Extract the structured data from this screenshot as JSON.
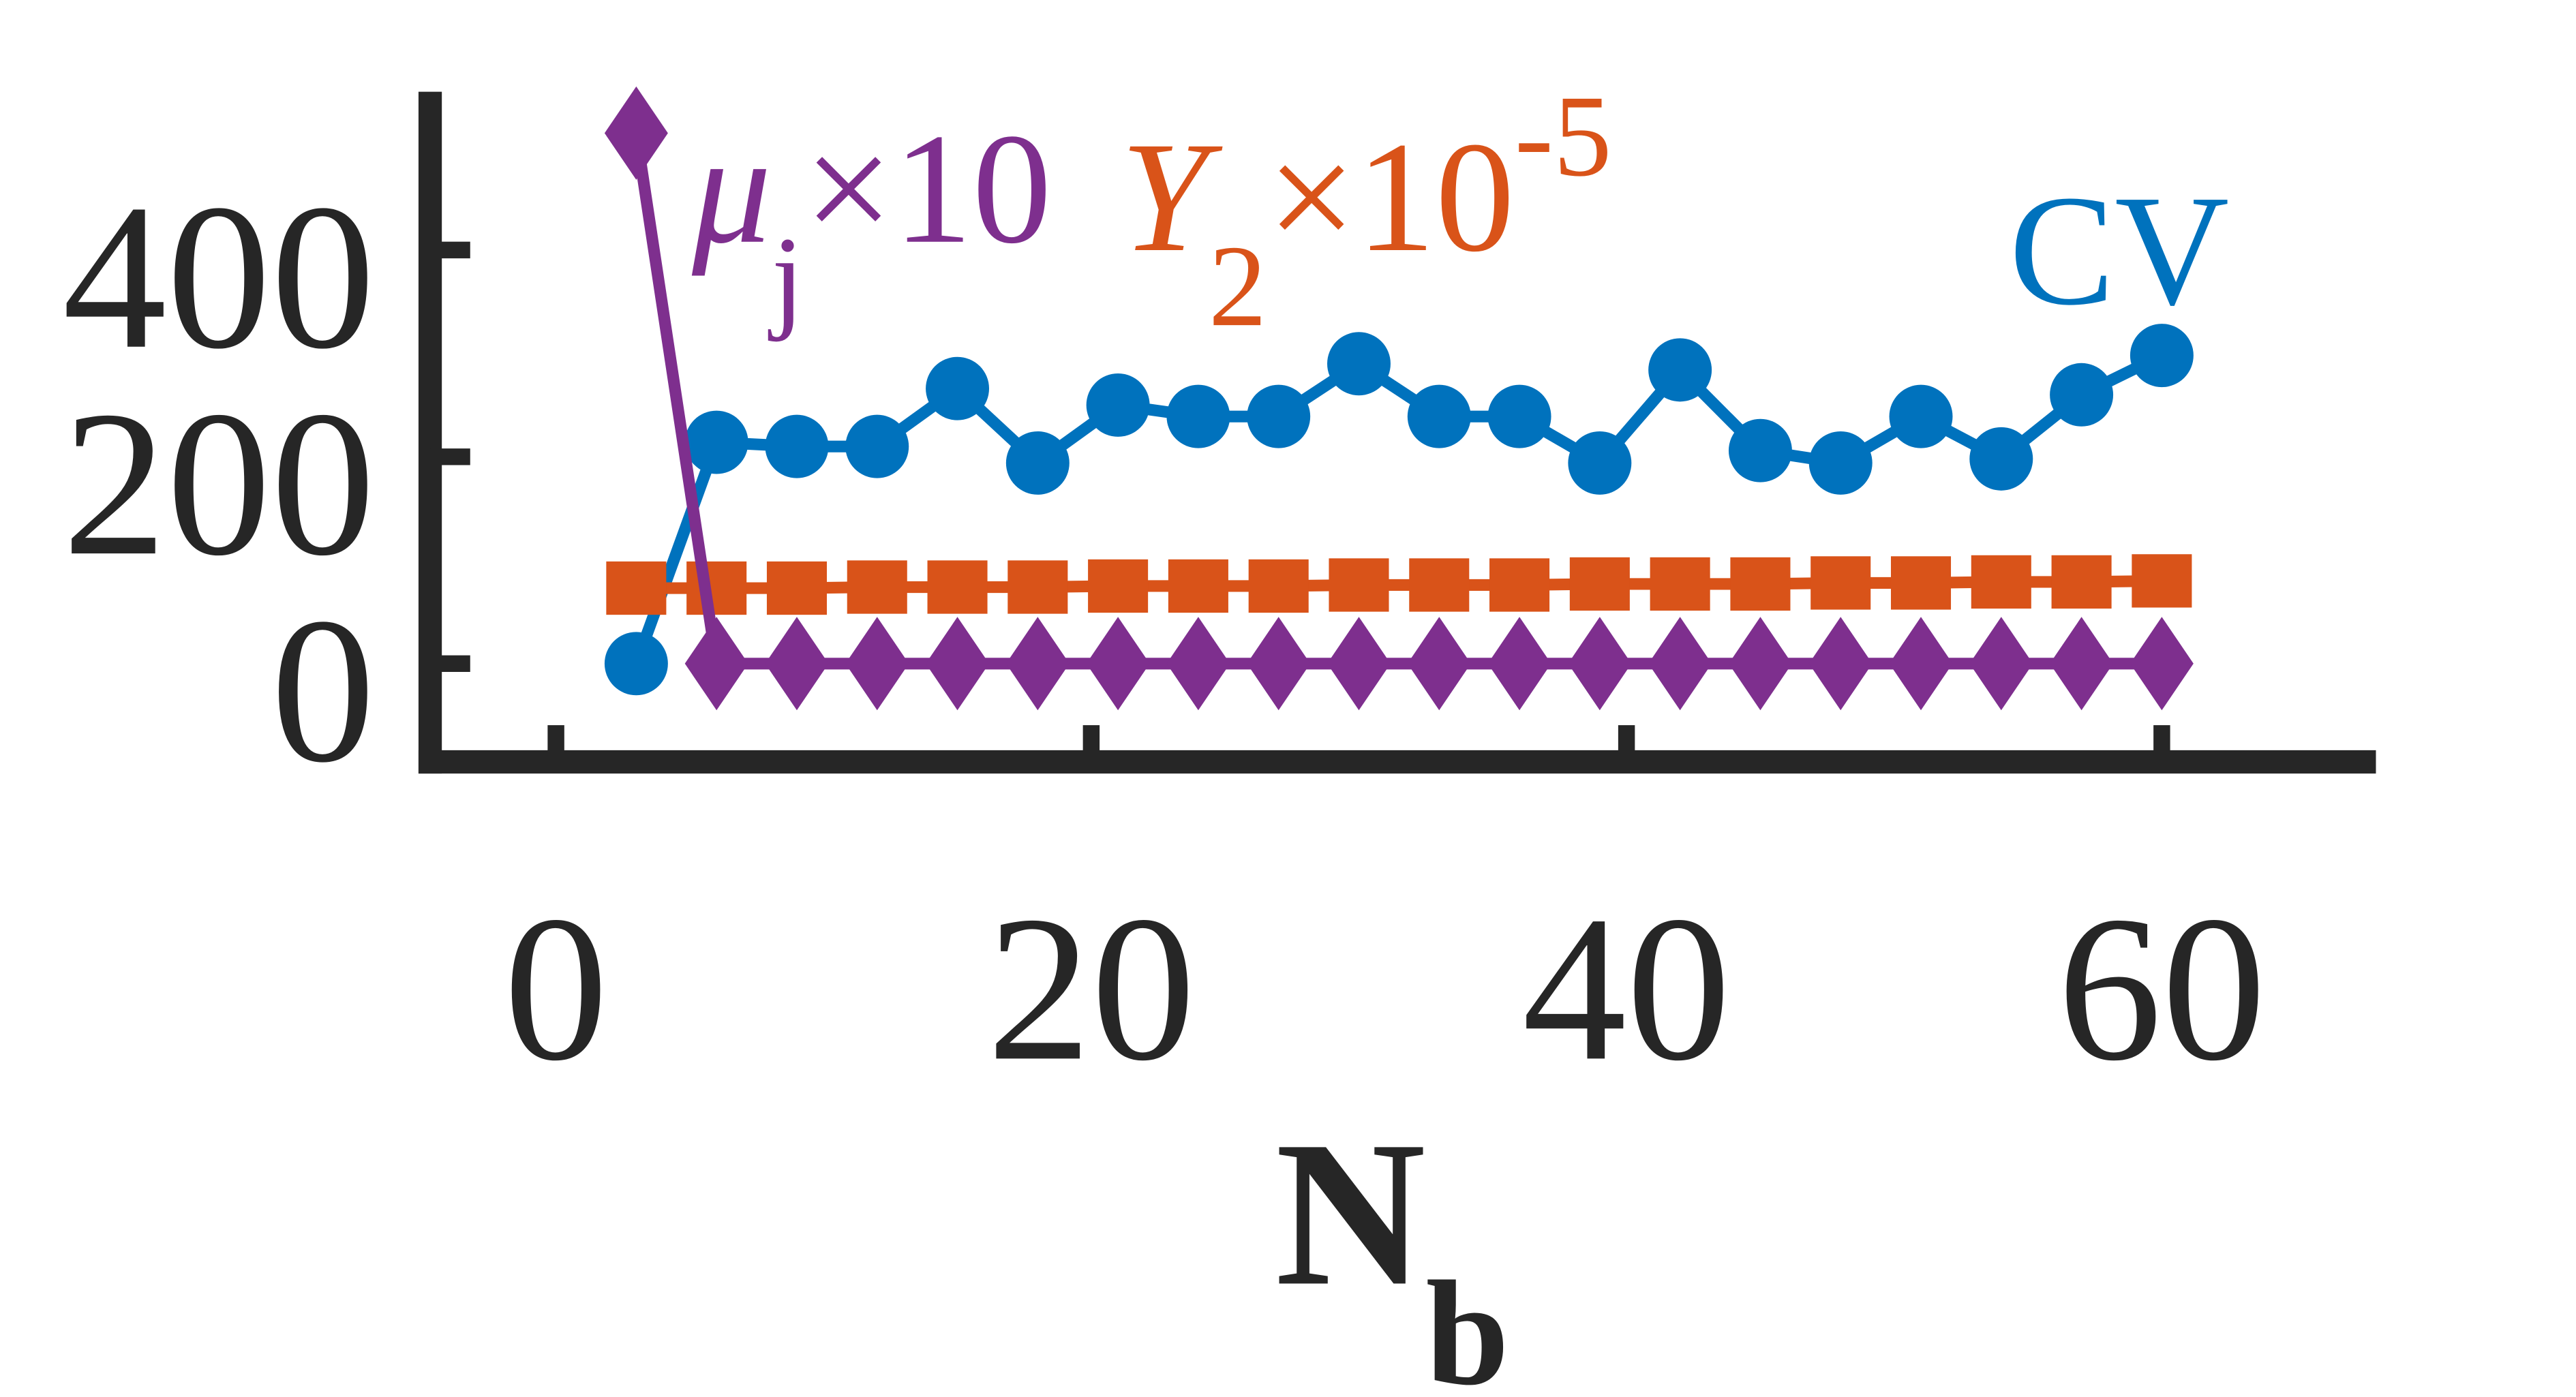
{
  "chart_data": {
    "type": "line",
    "x_label": {
      "text": "N",
      "sub": "b"
    },
    "x": [
      3,
      6,
      9,
      12,
      15,
      18,
      21,
      24,
      27,
      30,
      33,
      36,
      39,
      42,
      45,
      48,
      51,
      54,
      57,
      60
    ],
    "series": [
      {
        "name": "CV",
        "color": "#0072bd",
        "marker": "circle",
        "values": [
          0,
          214,
          210,
          210,
          266,
          194,
          250,
          239,
          239,
          290,
          239,
          239,
          194,
          284,
          206,
          194,
          239,
          198,
          260,
          298
        ]
      },
      {
        "name": "Y2",
        "color": "#d95319",
        "marker": "square",
        "values": [
          73,
          73,
          73,
          74,
          74,
          74,
          75,
          75,
          75,
          76,
          76,
          76,
          77,
          77,
          77,
          78,
          78,
          79,
          79,
          80
        ]
      },
      {
        "name": "μj",
        "color": "#7e2f8e",
        "marker": "diamond",
        "values": [
          513,
          0,
          0,
          0,
          0,
          0,
          0,
          0,
          0,
          0,
          0,
          0,
          0,
          0,
          0,
          0,
          0,
          0,
          0,
          0
        ]
      }
    ],
    "annotations": [
      {
        "text": "μ",
        "sub": "j",
        "suffix": "×10",
        "color": "#7e2f8e"
      },
      {
        "text": "Y",
        "sub": "2",
        "suffix": "×10",
        "sup": "-5",
        "color": "#d95319"
      },
      {
        "text": "CV",
        "color": "#0072bd"
      }
    ],
    "xlim": [
      -4.7,
      68
    ],
    "xticks": [
      0,
      20,
      40,
      60
    ],
    "ylim": [
      -95,
      553
    ],
    "yticks": [
      0,
      200,
      400
    ],
    "grid": false
  }
}
